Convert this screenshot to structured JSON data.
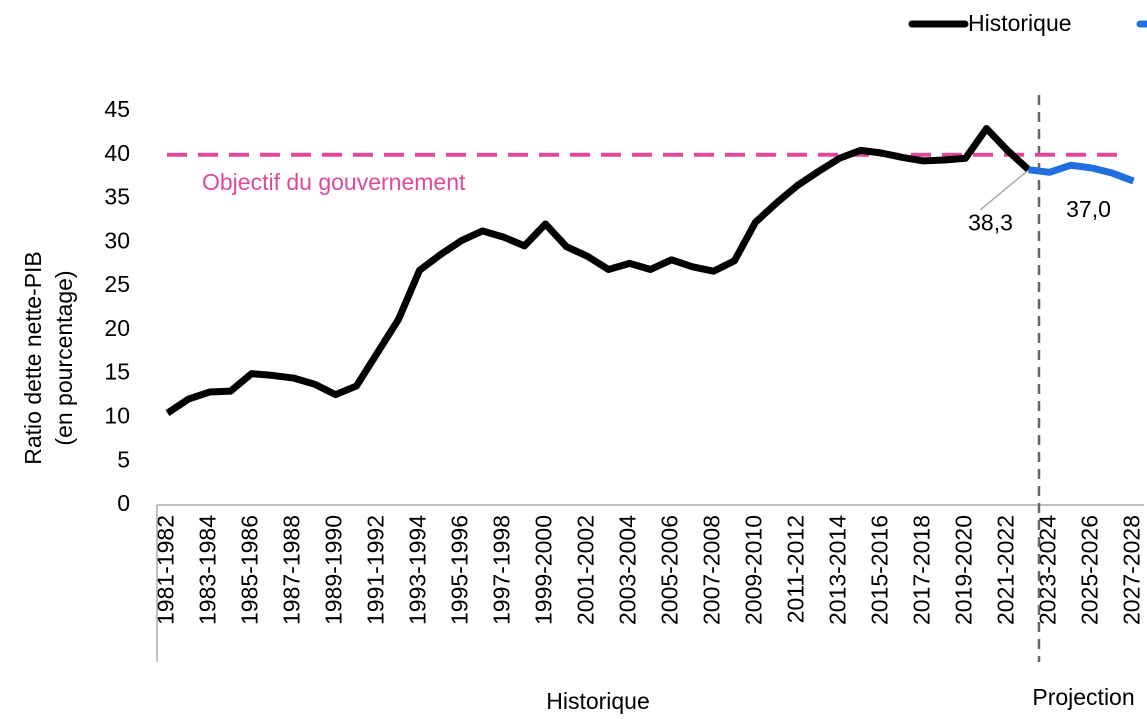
{
  "chart_data": {
    "type": "line",
    "y_label": [
      "Ratio dette nette-PIB",
      "(en pourcentage)"
    ],
    "categories": [
      "1981-1982",
      null,
      "1983-1984",
      null,
      "1985-1986",
      null,
      "1987-1988",
      null,
      "1989-1990",
      null,
      "1991-1992",
      null,
      "1993-1994",
      null,
      "1995-1996",
      null,
      "1997-1998",
      null,
      "1999-2000",
      null,
      "2001-2002",
      null,
      "2003-2004",
      null,
      "2005-2006",
      null,
      "2007-2008",
      null,
      "2009-2010",
      null,
      "2011-2012",
      null,
      "2013-2014",
      null,
      "2015-2016",
      null,
      "2017-2018",
      null,
      "2019-2020",
      null,
      "2021-2022",
      null,
      "2023-2024",
      null,
      "2025-2026",
      null,
      "2027-2028"
    ],
    "series": [
      {
        "name": "Historique",
        "color": "#000000",
        "values": [
          10.5,
          12.1,
          12.9,
          13.0,
          15.0,
          14.8,
          14.5,
          13.8,
          12.6,
          13.6,
          17.4,
          21.2,
          26.8,
          28.6,
          30.2,
          31.3,
          30.6,
          29.6,
          32.1,
          29.5,
          28.4,
          26.9,
          27.6,
          26.9,
          28.0,
          27.2,
          26.7,
          27.9,
          32.3,
          34.5,
          36.5,
          38.1,
          39.6,
          40.5,
          40.2,
          39.7,
          39.3,
          39.4,
          39.6,
          43.0,
          40.5,
          38.3,
          null,
          null,
          null,
          null,
          null
        ],
        "value_labels": [
          null,
          null,
          null,
          null,
          null,
          null,
          null,
          null,
          null,
          null,
          null,
          null,
          null,
          null,
          null,
          null,
          null,
          null,
          null,
          null,
          null,
          null,
          null,
          null,
          null,
          null,
          null,
          null,
          null,
          null,
          null,
          null,
          null,
          null,
          null,
          null,
          null,
          null,
          null,
          null,
          null,
          "38,3",
          null,
          null,
          null,
          null,
          null
        ]
      },
      {
        "color": "#1f6fe0",
        "values": [
          null,
          null,
          null,
          null,
          null,
          null,
          null,
          null,
          null,
          null,
          null,
          null,
          null,
          null,
          null,
          null,
          null,
          null,
          null,
          null,
          null,
          null,
          null,
          null,
          null,
          null,
          null,
          null,
          null,
          null,
          null,
          null,
          null,
          null,
          null,
          null,
          null,
          null,
          null,
          null,
          null,
          38.3,
          38.0,
          38.8,
          38.5,
          37.9,
          37.0
        ],
        "value_labels": [
          null,
          null,
          null,
          null,
          null,
          null,
          null,
          null,
          null,
          null,
          null,
          null,
          null,
          null,
          null,
          null,
          null,
          null,
          null,
          null,
          null,
          null,
          null,
          null,
          null,
          null,
          null,
          null,
          null,
          null,
          null,
          null,
          null,
          null,
          null,
          null,
          null,
          null,
          null,
          null,
          null,
          null,
          null,
          null,
          null,
          null,
          "37,0"
        ]
      }
    ],
    "target": {
      "value": 40,
      "label": "Objectif du gouvernement",
      "color": "#e0489a"
    },
    "sections": [
      "Historique",
      "Projection"
    ],
    "ylim": [
      0,
      45
    ],
    "yticks": [
      0,
      5,
      10,
      15,
      20,
      25,
      30,
      35,
      40,
      45
    ],
    "grid": false,
    "legend": "top-right"
  }
}
